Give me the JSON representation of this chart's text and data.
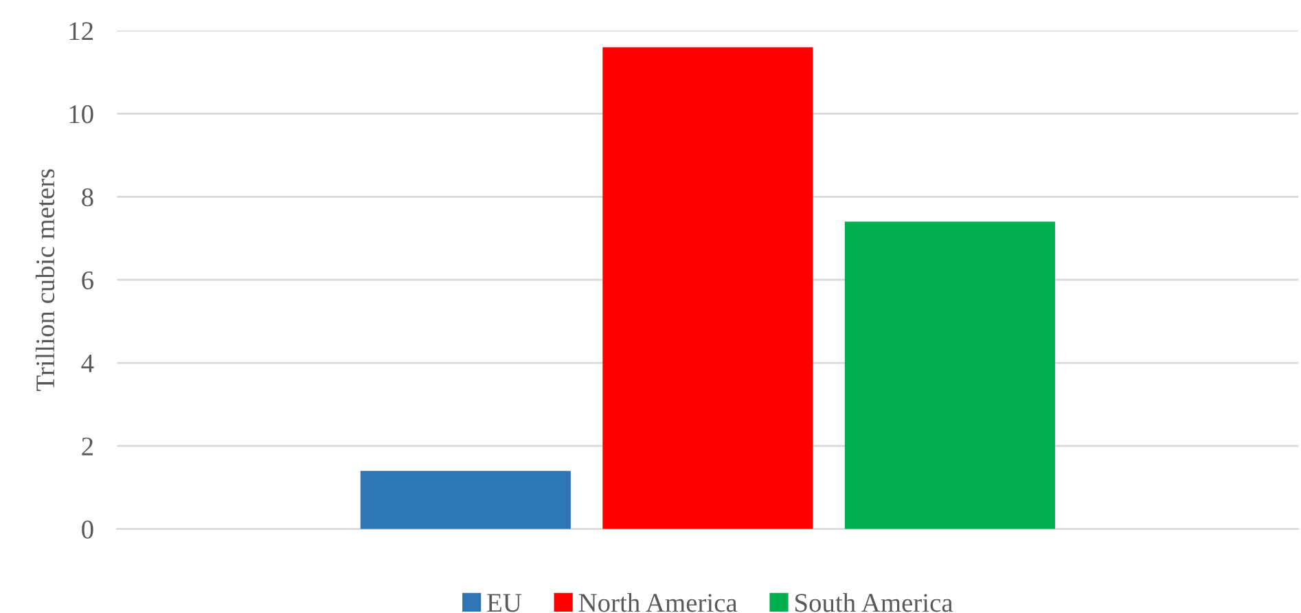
{
  "chart_data": {
    "type": "bar",
    "ylabel": "Trillion cubic meters",
    "categories": [
      null
    ],
    "series": [
      {
        "name": "EU",
        "color": "#2e75b6",
        "values": [
          1.4
        ]
      },
      {
        "name": "North America",
        "color": "#ff0000",
        "values": [
          11.6
        ]
      },
      {
        "name": "South America",
        "color": "#00b050",
        "values": [
          7.4
        ]
      }
    ],
    "ylim": [
      0,
      12
    ],
    "yticks": [
      0,
      2,
      4,
      6,
      8,
      10,
      12
    ],
    "grid": "y",
    "legend": "bottom"
  }
}
